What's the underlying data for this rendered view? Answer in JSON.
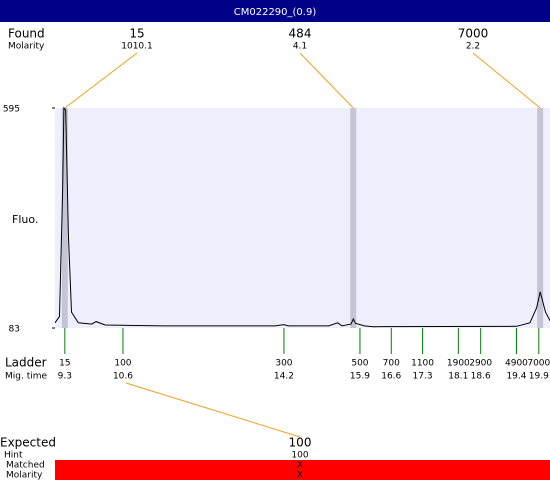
{
  "title": "CM022290_(0.9)",
  "chart_data": {
    "type": "electropherogram",
    "y_label": "Fluo.",
    "ylim": [
      83,
      595
    ],
    "yticks": [
      83,
      595
    ],
    "xlim": [
      9.08,
      20.15
    ],
    "trace": {
      "x": [
        9.08,
        9.18,
        9.25,
        9.28,
        9.32,
        9.38,
        9.45,
        9.6,
        9.9,
        10.0,
        10.2,
        11.5,
        14.0,
        14.2,
        14.3,
        15.2,
        15.4,
        15.5,
        15.7,
        15.75,
        15.8,
        16.0,
        16.2,
        19.4,
        19.7,
        19.85,
        19.93,
        20.05,
        20.15
      ],
      "y": [
        95,
        110,
        400,
        595,
        590,
        300,
        120,
        95,
        92,
        98,
        90,
        88,
        88,
        91,
        88,
        88,
        95,
        88,
        92,
        104,
        94,
        88,
        86,
        87,
        95,
        130,
        167,
        120,
        100
      ]
    },
    "found": {
      "label": "Found",
      "molarity_label": "Molarity",
      "peaks": [
        {
          "size": 15,
          "molarity": 1010.1,
          "time": 9.3
        },
        {
          "size": 484,
          "molarity": 4.1,
          "time": 15.75
        },
        {
          "size": 7000,
          "molarity": 2.2,
          "time": 19.93
        }
      ]
    },
    "ladder": {
      "label": "Ladder",
      "time_label": "Mig. time",
      "sizes": [
        15,
        100,
        300,
        500,
        700,
        1100,
        1900,
        2900,
        4900,
        7000
      ],
      "times": [
        9.3,
        10.6,
        14.2,
        15.9,
        16.6,
        17.3,
        18.1,
        18.6,
        19.4,
        19.9
      ]
    },
    "expected": {
      "label": "Expected",
      "hint_label": "Hint",
      "matched_label": "Matched",
      "molarity_label": "Molarity",
      "size": 100,
      "hint": 100,
      "matched": "X",
      "molarity": "X"
    }
  }
}
